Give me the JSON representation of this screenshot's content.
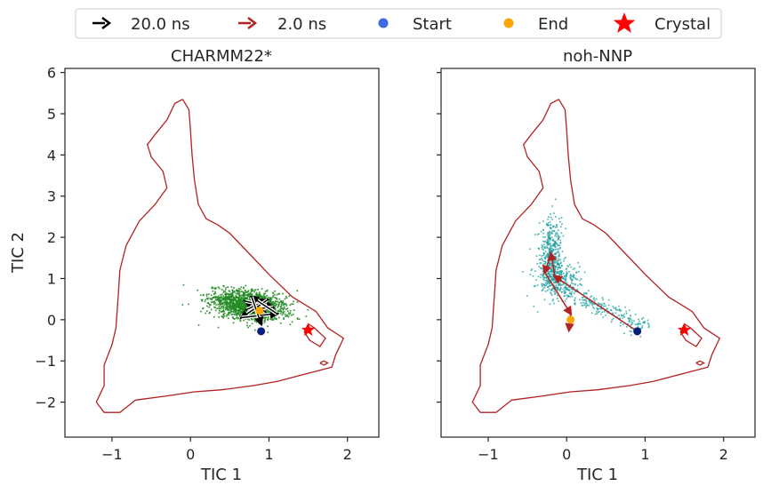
{
  "legend": {
    "items": [
      {
        "label": "20.0 ns",
        "kind": "arrow",
        "color": "#000000"
      },
      {
        "label": "2.0 ns",
        "kind": "arrow",
        "color": "#b22222"
      },
      {
        "label": "Start",
        "kind": "dot",
        "color": "#4169e1"
      },
      {
        "label": "End",
        "kind": "dot",
        "color": "#ffa500"
      },
      {
        "label": "Crystal",
        "kind": "star",
        "color": "#ff0000"
      }
    ],
    "placement": "top-center"
  },
  "ylabel": "TIC 2",
  "chart_data": [
    {
      "type": "scatter",
      "title": "CHARMM22*",
      "xlabel": "TIC 1",
      "ylabel": "TIC 2",
      "xlim": [
        -1.6,
        2.4
      ],
      "ylim": [
        -2.85,
        6.1
      ],
      "xticks": [
        -1,
        0,
        1,
        2
      ],
      "yticks": [
        -2,
        -1,
        0,
        1,
        2,
        3,
        4,
        5,
        6
      ],
      "xtick_labels": [
        "−1",
        "0",
        "1",
        "2"
      ],
      "ytick_labels": [
        "−2",
        "−1",
        "0",
        "1",
        "2",
        "3",
        "4",
        "5",
        "6"
      ],
      "cloud": {
        "color": "#228b22",
        "center": [
          0.75,
          0.35
        ],
        "spread": [
          0.24,
          0.17
        ],
        "tilt": -0.45,
        "count": 1600
      },
      "arrows": {
        "color": "#000000",
        "path": [
          [
            0.8,
            0.5
          ],
          [
            0.95,
            0.2
          ],
          [
            0.7,
            0.45
          ],
          [
            1.05,
            0.3
          ],
          [
            0.72,
            0.25
          ],
          [
            0.98,
            0.48
          ],
          [
            0.65,
            0.05
          ],
          [
            1.1,
            0.15
          ],
          [
            0.78,
            0.55
          ],
          [
            0.9,
            -0.1
          ]
        ]
      },
      "start": [
        0.9,
        -0.28
      ],
      "end": [
        0.88,
        0.22
      ],
      "crystal": [
        1.5,
        -0.25
      ]
    },
    {
      "type": "scatter",
      "title": "noh-NNP",
      "xlabel": "TIC 1",
      "ylabel": "",
      "xlim": [
        -1.6,
        2.4
      ],
      "ylim": [
        -2.85,
        6.1
      ],
      "xticks": [
        -1,
        0,
        1,
        2
      ],
      "yticks": [
        -2,
        -1,
        0,
        1,
        2,
        3,
        4,
        5,
        6
      ],
      "xtick_labels": [
        "−1",
        "0",
        "1",
        "2"
      ],
      "ytick_labels": [],
      "cloud": {
        "color": "#1a9c9c",
        "count": 900
      },
      "arrows": {
        "color": "#b22222",
        "path": [
          [
            0.9,
            -0.28
          ],
          [
            -0.15,
            1.05
          ],
          [
            -0.2,
            1.6
          ],
          [
            -0.28,
            1.15
          ],
          [
            0.05,
            0.15
          ],
          [
            0.03,
            -0.25
          ]
        ]
      },
      "start": [
        0.9,
        -0.28
      ],
      "end": [
        0.05,
        0.0
      ],
      "crystal": [
        1.5,
        -0.25
      ]
    }
  ],
  "contour": {
    "color": "#b22222",
    "outline": [
      [
        -0.1,
        5.35
      ],
      [
        -0.2,
        5.25
      ],
      [
        -0.3,
        4.85
      ],
      [
        -0.45,
        4.5
      ],
      [
        -0.55,
        4.25
      ],
      [
        -0.5,
        3.95
      ],
      [
        -0.35,
        3.6
      ],
      [
        -0.3,
        3.2
      ],
      [
        -0.45,
        2.8
      ],
      [
        -0.65,
        2.4
      ],
      [
        -0.82,
        1.8
      ],
      [
        -0.9,
        1.2
      ],
      [
        -0.92,
        0.6
      ],
      [
        -0.95,
        -0.2
      ],
      [
        -1.0,
        -0.6
      ],
      [
        -1.1,
        -1.1
      ],
      [
        -1.1,
        -1.6
      ],
      [
        -1.2,
        -2.0
      ],
      [
        -1.1,
        -2.25
      ],
      [
        -0.9,
        -2.25
      ],
      [
        -0.7,
        -1.95
      ],
      [
        -0.3,
        -1.85
      ],
      [
        0.05,
        -1.75
      ],
      [
        0.4,
        -1.7
      ],
      [
        0.8,
        -1.6
      ],
      [
        1.1,
        -1.5
      ],
      [
        1.5,
        -1.3
      ],
      [
        1.8,
        -1.15
      ],
      [
        1.85,
        -0.85
      ],
      [
        1.95,
        -0.45
      ],
      [
        1.75,
        -0.2
      ],
      [
        1.6,
        0.2
      ],
      [
        1.3,
        0.55
      ],
      [
        1.0,
        1.1
      ],
      [
        0.7,
        1.7
      ],
      [
        0.5,
        2.1
      ],
      [
        0.35,
        2.3
      ],
      [
        0.2,
        2.45
      ],
      [
        0.1,
        2.8
      ],
      [
        0.05,
        3.4
      ],
      [
        0.02,
        4.0
      ],
      [
        0.0,
        4.6
      ],
      [
        -0.02,
        5.1
      ],
      [
        -0.1,
        5.35
      ]
    ],
    "loop": [
      [
        1.5,
        -0.1
      ],
      [
        1.58,
        -0.2
      ],
      [
        1.72,
        -0.45
      ],
      [
        1.65,
        -0.65
      ],
      [
        1.52,
        -0.5
      ],
      [
        1.45,
        -0.3
      ],
      [
        1.5,
        -0.1
      ]
    ],
    "tick": [
      [
        1.65,
        -1.05
      ],
      [
        1.7,
        -1.0
      ],
      [
        1.75,
        -1.05
      ],
      [
        1.7,
        -1.1
      ],
      [
        1.65,
        -1.05
      ]
    ]
  }
}
